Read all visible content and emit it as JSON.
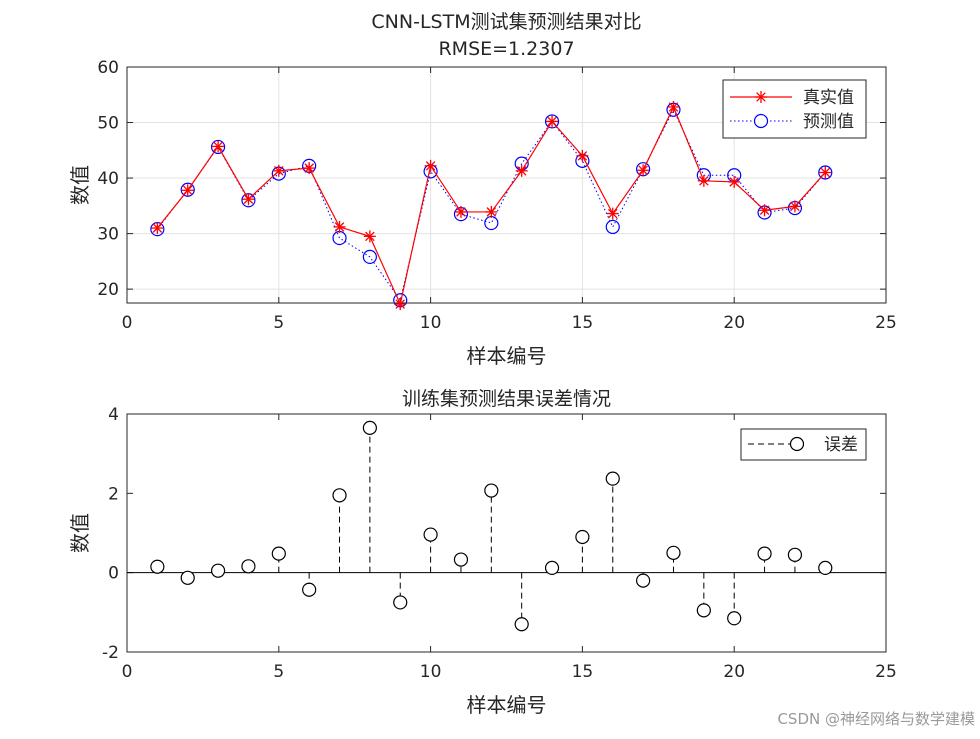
{
  "watermark": "CSDN @神经网络与数学建模",
  "chart_data": [
    {
      "type": "line",
      "title": "CNN-LSTM测试集预测结果对比",
      "subtitle": "RMSE=1.2307",
      "xlabel": "样本编号",
      "ylabel": "数值",
      "xlim": [
        0,
        25
      ],
      "ylim": [
        17.5,
        60
      ],
      "xticks": [
        0,
        5,
        10,
        15,
        20,
        25
      ],
      "yticks": [
        20,
        30,
        40,
        50,
        60
      ],
      "grid": true,
      "legend_position": "top-right",
      "x": [
        1,
        2,
        3,
        4,
        5,
        6,
        7,
        8,
        9,
        10,
        11,
        12,
        13,
        14,
        15,
        16,
        17,
        18,
        19,
        20,
        21,
        22,
        23
      ],
      "series": [
        {
          "name": "真实值",
          "color": "#ff0000",
          "marker": "asterisk",
          "line": "solid",
          "values": [
            31.0,
            37.8,
            45.7,
            36.2,
            41.3,
            41.8,
            31.2,
            29.5,
            17.3,
            42.2,
            33.9,
            33.9,
            41.3,
            50.2,
            44.0,
            33.6,
            41.4,
            52.8,
            39.5,
            39.3,
            34.2,
            34.9,
            41.0
          ]
        },
        {
          "name": "预测值",
          "color": "#0000ff",
          "marker": "circle",
          "line": "dotted",
          "values": [
            30.8,
            37.9,
            45.6,
            36.0,
            40.8,
            42.2,
            29.2,
            25.8,
            18.0,
            41.2,
            33.5,
            31.9,
            42.6,
            50.2,
            43.1,
            31.2,
            41.6,
            52.3,
            40.5,
            40.5,
            33.8,
            34.6,
            41.0
          ]
        }
      ]
    },
    {
      "type": "stem",
      "title": "训练集预测结果误差情况",
      "xlabel": "样本编号",
      "ylabel": "数值",
      "xlim": [
        0,
        25
      ],
      "ylim": [
        -2,
        4
      ],
      "xticks": [
        0,
        5,
        10,
        15,
        20,
        25
      ],
      "yticks": [
        -2,
        0,
        2,
        4
      ],
      "grid": false,
      "legend_position": "top-right",
      "x": [
        1,
        2,
        3,
        4,
        5,
        6,
        7,
        8,
        9,
        10,
        11,
        12,
        13,
        14,
        15,
        16,
        17,
        18,
        19,
        20,
        21,
        22,
        23
      ],
      "series": [
        {
          "name": "误差",
          "color": "#000000",
          "marker": "circle",
          "line": "dashed",
          "values": [
            0.15,
            -0.13,
            0.05,
            0.16,
            0.48,
            -0.43,
            1.95,
            3.65,
            -0.75,
            0.96,
            0.33,
            2.07,
            -1.3,
            0.12,
            0.9,
            2.37,
            -0.2,
            0.5,
            -0.95,
            -1.15,
            0.48,
            0.45,
            0.12
          ]
        }
      ]
    }
  ]
}
